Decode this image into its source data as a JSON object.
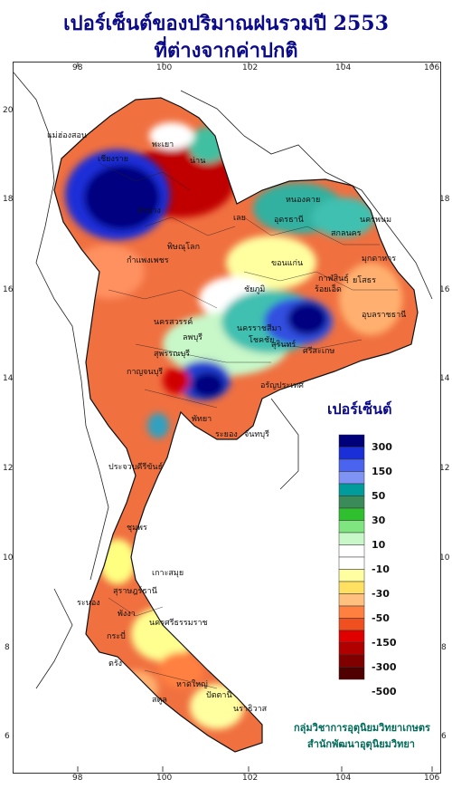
{
  "title": {
    "line1": "เปอร์เซ็นต์ของปริมาณฝนรวมปี  2553",
    "line2": "ที่ต่างจากค่าปกติ"
  },
  "axes": {
    "top_ticks": [
      "98",
      "100",
      "102",
      "104",
      "106"
    ],
    "bottom_ticks": [
      "98",
      "100",
      "102",
      "104",
      "106"
    ],
    "left_ticks": [
      "20",
      "18",
      "16",
      "14",
      "12",
      "10",
      "8",
      "6"
    ],
    "right_ticks": [
      "18",
      "16",
      "14",
      "12",
      "10",
      "8",
      "6"
    ]
  },
  "legend": {
    "title": "เปอร์เซ็นต์",
    "swatch_colors": [
      "#00007a",
      "#1a2fd8",
      "#4b64f0",
      "#7f93f5",
      "#009b9b",
      "#3a8a5a",
      "#2fbf2f",
      "#7fe57f",
      "#c8f7c8",
      "#ffffff",
      "#ffffff",
      "#ffffa0",
      "#ffe060",
      "#ffc080",
      "#ff8040",
      "#f05020",
      "#e00000",
      "#b00000",
      "#800000",
      "#500000"
    ],
    "labels": [
      "300",
      "150",
      "50",
      "30",
      "10",
      "-10",
      "-30",
      "-50",
      "-150",
      "-300",
      "-500"
    ]
  },
  "credits": {
    "line1": "กลุ่มวิชาการอุตุนิยมวิทยาเกษตร",
    "line2": "สำนักพัฒนาอุตุนิยมวิทยา"
  },
  "places": [
    "แม่ฮ่องสอน",
    "เชียงราย",
    "พะเยา",
    "น่าน",
    "ลำปาง",
    "หนองคาย",
    "อุดรธานี",
    "สกลนคร",
    "นครพนม",
    "เลย",
    "มุกดาหาร",
    "กาฬสินธุ์",
    "พิษณุโลก",
    "กำแพงเพชร",
    "ขอนแก่น",
    "ร้อยเอ็ด",
    "ยโสธร",
    "ชัยภูมิ",
    "อุบลราชธานี",
    "นครสวรรค์",
    "นครราชสีมา",
    "โชคชัย",
    "สุรินทร์",
    "ศรีสะเกษ",
    "ลพบุรี",
    "สุพรรณบุรี",
    "กาญจนบุรี",
    "อรัญประเทศ",
    "พัทยา",
    "ระยอง",
    "จันทบุรี",
    "ประจวบคีรีขันธ์",
    "ชุมพร",
    "สุราษฎร์ธานี",
    "เกาะสมุย",
    "นครศรีธรรมราช",
    "ระนอง",
    "พังงา",
    "กระบี่",
    "ตรัง",
    "สตูล",
    "หาดใหญ่",
    "ปัตตานี",
    "นราธิวาส"
  ]
}
